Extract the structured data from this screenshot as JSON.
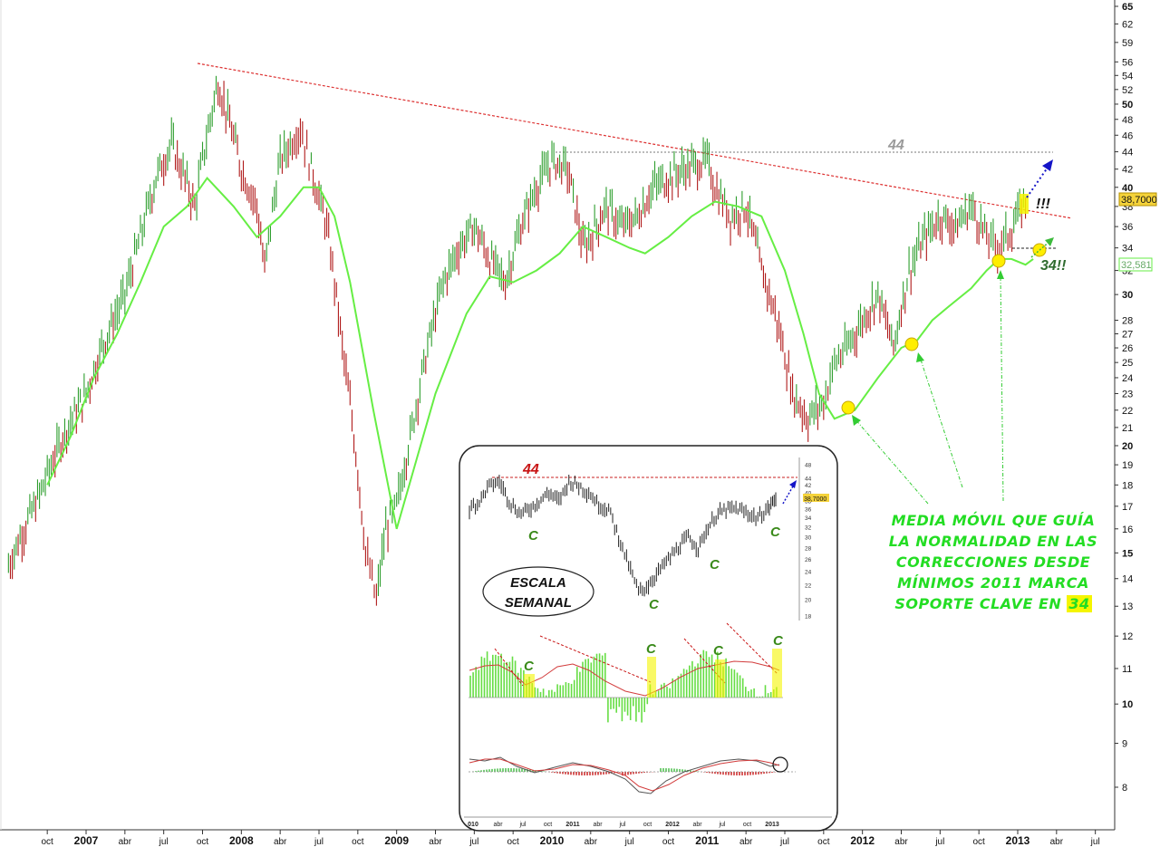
{
  "chart_data": {
    "type": "line",
    "scale": "log",
    "ylim": [
      7.5,
      66
    ],
    "ticks_right": [
      "65",
      "62",
      "59",
      "56",
      "54",
      "52",
      "50",
      "48",
      "46",
      "44",
      "42",
      "40",
      "38",
      "36",
      "34",
      "32",
      "30",
      "28",
      "27",
      "26",
      "25",
      "24",
      "23",
      "22",
      "21",
      "20",
      "19",
      "18",
      "17",
      "16",
      "15",
      "14",
      "13",
      "12",
      "11",
      "10",
      "9",
      "8"
    ],
    "x_labels": [
      {
        "label": "oct",
        "t": 2006.75,
        "bold": false
      },
      {
        "label": "2007",
        "t": 2007.0,
        "bold": true
      },
      {
        "label": "abr",
        "t": 2007.25,
        "bold": false
      },
      {
        "label": "jul",
        "t": 2007.5,
        "bold": false
      },
      {
        "label": "oct",
        "t": 2007.75,
        "bold": false
      },
      {
        "label": "2008",
        "t": 2008.0,
        "bold": true
      },
      {
        "label": "abr",
        "t": 2008.25,
        "bold": false
      },
      {
        "label": "jul",
        "t": 2008.5,
        "bold": false
      },
      {
        "label": "oct",
        "t": 2008.75,
        "bold": false
      },
      {
        "label": "2009",
        "t": 2009.0,
        "bold": true
      },
      {
        "label": "abr",
        "t": 2009.25,
        "bold": false
      },
      {
        "label": "jul",
        "t": 2009.5,
        "bold": false
      },
      {
        "label": "oct",
        "t": 2009.75,
        "bold": false
      },
      {
        "label": "2010",
        "t": 2010.0,
        "bold": true
      },
      {
        "label": "abr",
        "t": 2010.25,
        "bold": false
      },
      {
        "label": "jul",
        "t": 2010.5,
        "bold": false
      },
      {
        "label": "oct",
        "t": 2010.75,
        "bold": false
      },
      {
        "label": "2011",
        "t": 2011.0,
        "bold": true
      },
      {
        "label": "abr",
        "t": 2011.25,
        "bold": false
      },
      {
        "label": "jul",
        "t": 2011.5,
        "bold": false
      },
      {
        "label": "oct",
        "t": 2011.75,
        "bold": false
      },
      {
        "label": "2012",
        "t": 2012.0,
        "bold": true
      },
      {
        "label": "abr",
        "t": 2012.25,
        "bold": false
      },
      {
        "label": "jul",
        "t": 2012.5,
        "bold": false
      },
      {
        "label": "oct",
        "t": 2012.75,
        "bold": false
      },
      {
        "label": "2013",
        "t": 2013.0,
        "bold": true
      },
      {
        "label": "abr",
        "t": 2013.25,
        "bold": false
      },
      {
        "label": "jul",
        "t": 2013.5,
        "bold": false
      }
    ],
    "series": [
      {
        "color": "#228b22",
        "x": [
          2006.5,
          2006.7,
          2006.85,
          2007.0,
          2007.1,
          2007.25,
          2007.35,
          2007.45,
          2007.55,
          2007.7,
          2007.8,
          2007.85,
          2008.0,
          2008.1,
          2008.15,
          2008.25,
          2008.38,
          2008.45,
          2008.55,
          2008.65,
          2008.8,
          2008.87,
          2008.93,
          2009.0,
          2009.1,
          2009.2,
          2009.3,
          2009.4,
          2009.5,
          2009.6,
          2009.7,
          2009.8,
          2009.9,
          2010.0,
          2010.1,
          2010.2,
          2010.25,
          2010.35,
          2010.45,
          2010.55,
          2010.65,
          2010.75,
          2010.85,
          2011.0,
          2011.05,
          2011.15,
          2011.25,
          2011.35,
          2011.45,
          2011.55,
          2011.65,
          2011.75,
          2011.82,
          2011.9,
          2012.0,
          2012.1,
          2012.2,
          2012.3,
          2012.4,
          2012.5,
          2012.6,
          2012.7,
          2012.8,
          2012.87,
          2012.95,
          2013.05
        ],
        "y": [
          14.5,
          17.5,
          20.5,
          23,
          26,
          30,
          35,
          41,
          45,
          38,
          48,
          53,
          42,
          38,
          32,
          43,
          47,
          42,
          36,
          26,
          15,
          13.2,
          16,
          17,
          21,
          26,
          31,
          34,
          36,
          33,
          31,
          36,
          40,
          43,
          42,
          34,
          35,
          38,
          36,
          37,
          40,
          41,
          42,
          43,
          40,
          37,
          38,
          32,
          28,
          23,
          21.5,
          22.5,
          25,
          26,
          28,
          30,
          26,
          32,
          35,
          37,
          36,
          38,
          35,
          34,
          35.5,
          38.7
        ]
      },
      {
        "color": "#66ee44",
        "x": [
          2006.75,
          2006.9,
          2007.05,
          2007.2,
          2007.35,
          2007.5,
          2007.65,
          2007.78,
          2007.95,
          2008.1,
          2008.25,
          2008.4,
          2008.5,
          2008.6,
          2008.7,
          2008.85,
          2009.0,
          2009.1,
          2009.25,
          2009.45,
          2009.6,
          2009.75,
          2009.9,
          2010.05,
          2010.2,
          2010.35,
          2010.5,
          2010.6,
          2010.75,
          2010.9,
          2011.05,
          2011.2,
          2011.35,
          2011.5,
          2011.62,
          2011.72,
          2011.82,
          2011.95,
          2012.1,
          2012.25,
          2012.35,
          2012.45,
          2012.55,
          2012.7,
          2012.8,
          2012.88,
          2012.96,
          2013.05,
          2013.1
        ],
        "y": [
          18,
          20.5,
          24,
          27,
          31,
          36,
          38,
          41,
          38,
          35,
          37,
          40,
          40,
          37,
          31,
          22,
          16,
          18.5,
          23,
          28.5,
          31.5,
          31,
          32,
          33.5,
          36,
          35,
          34,
          33.5,
          35,
          37,
          38.5,
          38,
          37,
          32,
          27,
          23,
          21.5,
          22,
          24,
          26,
          26.5,
          28,
          29,
          30.5,
          32,
          33,
          33,
          32.5,
          33
        ]
      }
    ]
  },
  "annotations": {
    "level_44": "44",
    "exclaim": "!!!",
    "support_34": "34!!",
    "price_tag": "38,7000",
    "ma_tag": "32,581",
    "main_note_lines": [
      "MEDIA MÓVIL QUE GUÍA",
      "LA NORMALIDAD EN LAS",
      "CORRECCIONES DESDE",
      "MÍNIMOS 2011 MARCA"
    ],
    "main_note_last": "SOPORTE CLAVE EN ",
    "main_note_hl": "34"
  },
  "inset": {
    "level_44": "44",
    "escala_line1": "ESCALA",
    "escala_line2": "SEMANAL",
    "c_mark": "C",
    "price_tag": "38,7000",
    "ticks": [
      "48",
      "44",
      "42",
      "40",
      "38",
      "36",
      "34",
      "32",
      "30",
      "28",
      "26",
      "24",
      "22",
      "20",
      "18"
    ],
    "x_labels": [
      "010",
      "abr",
      "jul",
      "oct",
      "2011",
      "abr",
      "jul",
      "oct",
      "2012",
      "abr",
      "jul",
      "oct",
      "2013"
    ],
    "chart_data": {
      "type": "line",
      "x": [
        2010.0,
        2010.1,
        2010.2,
        2010.3,
        2010.4,
        2010.5,
        2010.6,
        2010.7,
        2010.8,
        2010.9,
        2011.0,
        2011.1,
        2011.2,
        2011.3,
        2011.4,
        2011.5,
        2011.6,
        2011.7,
        2011.8,
        2011.9,
        2012.0,
        2012.1,
        2012.2,
        2012.3,
        2012.4,
        2012.5,
        2012.6,
        2012.7,
        2012.8,
        2012.9,
        2013.0,
        2013.08
      ],
      "y": [
        36,
        38,
        42,
        43,
        38,
        35,
        36,
        38,
        40,
        38,
        43,
        42,
        40,
        37,
        36,
        30,
        25,
        21,
        22,
        24,
        26,
        28,
        30,
        28,
        32,
        35,
        36,
        36,
        35,
        34,
        36,
        38.7
      ]
    }
  }
}
